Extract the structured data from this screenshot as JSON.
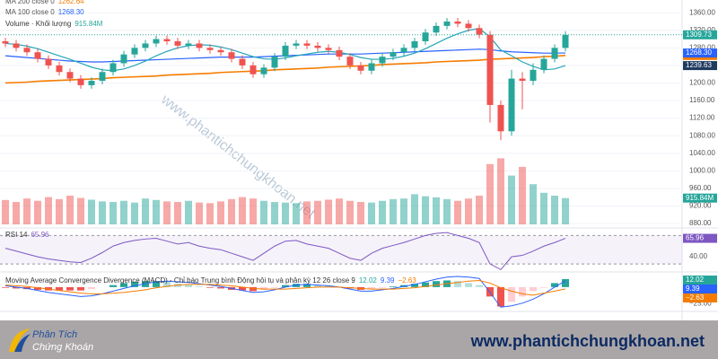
{
  "chart_data": {
    "type": "candlestick",
    "ylim": [
      874,
      1389
    ],
    "yticks": [
      {
        "value": 880,
        "label": "880.00"
      },
      {
        "value": 920,
        "label": "920.00"
      },
      {
        "value": 960,
        "label": "960.00"
      },
      {
        "value": 1000,
        "label": "1000.00"
      },
      {
        "value": 1040,
        "label": "1040.00"
      },
      {
        "value": 1080,
        "label": "1080.00"
      },
      {
        "value": 1120,
        "label": "1120.00"
      },
      {
        "value": 1160,
        "label": "1160.00"
      },
      {
        "value": 1200,
        "label": "1200.00"
      },
      {
        "value": 1240,
        "label": "1240.00"
      },
      {
        "value": 1280,
        "label": "1280.00"
      },
      {
        "value": 1320,
        "label": "1320.00"
      },
      {
        "value": 1360,
        "label": "1360.00"
      }
    ],
    "grid": true,
    "up_color": "#26a69a",
    "down_color": "#ef5350",
    "open": [
      1295,
      1290,
      1280,
      1270,
      1255,
      1240,
      1225,
      1210,
      1195,
      1205,
      1225,
      1245,
      1265,
      1280,
      1290,
      1300,
      1295,
      1285,
      1290,
      1280,
      1275,
      1270,
      1255,
      1240,
      1220,
      1235,
      1260,
      1285,
      1290,
      1285,
      1280,
      1275,
      1260,
      1240,
      1228,
      1245,
      1260,
      1270,
      1280,
      1295,
      1315,
      1330,
      1340,
      1335,
      1325,
      1310,
      1150,
      1090,
      1210,
      1205,
      1230,
      1255,
      1280
    ],
    "high": [
      1303,
      1298,
      1288,
      1278,
      1263,
      1248,
      1233,
      1218,
      1213,
      1233,
      1253,
      1273,
      1288,
      1298,
      1308,
      1308,
      1303,
      1298,
      1298,
      1288,
      1283,
      1278,
      1263,
      1248,
      1243,
      1268,
      1293,
      1298,
      1298,
      1293,
      1288,
      1283,
      1268,
      1248,
      1253,
      1268,
      1278,
      1288,
      1303,
      1323,
      1338,
      1348,
      1348,
      1343,
      1333,
      1318,
      1160,
      1230,
      1225,
      1245,
      1263,
      1288,
      1318
    ],
    "low": [
      1282,
      1272,
      1262,
      1247,
      1232,
      1217,
      1202,
      1187,
      1187,
      1197,
      1217,
      1237,
      1257,
      1272,
      1282,
      1287,
      1277,
      1277,
      1272,
      1267,
      1262,
      1247,
      1232,
      1212,
      1212,
      1227,
      1252,
      1277,
      1277,
      1272,
      1267,
      1252,
      1232,
      1220,
      1220,
      1237,
      1252,
      1262,
      1272,
      1287,
      1307,
      1322,
      1327,
      1317,
      1302,
      1110,
      1070,
      1080,
      1140,
      1195,
      1222,
      1247,
      1272
    ],
    "close": [
      1290,
      1280,
      1270,
      1255,
      1240,
      1225,
      1210,
      1195,
      1205,
      1225,
      1245,
      1265,
      1280,
      1290,
      1300,
      1295,
      1285,
      1290,
      1280,
      1275,
      1270,
      1255,
      1240,
      1220,
      1235,
      1260,
      1285,
      1290,
      1285,
      1280,
      1275,
      1260,
      1240,
      1228,
      1245,
      1260,
      1270,
      1280,
      1295,
      1315,
      1330,
      1340,
      1335,
      1325,
      1310,
      1150,
      1090,
      1210,
      1205,
      1230,
      1255,
      1280,
      1309.73
    ],
    "series": [
      {
        "name": "MA 200 close 0",
        "color": "#f57c00",
        "value_label": "1262.64",
        "values": [
          1200,
          1201,
          1202,
          1204,
          1205,
          1206,
          1207,
          1208,
          1209,
          1210,
          1212,
          1213,
          1214,
          1215,
          1216,
          1218,
          1219,
          1220,
          1221,
          1222,
          1224,
          1225,
          1226,
          1227,
          1228,
          1230,
          1231,
          1232,
          1233,
          1234,
          1236,
          1237,
          1238,
          1239,
          1240,
          1242,
          1243,
          1244,
          1245,
          1246,
          1248,
          1249,
          1250,
          1251,
          1252,
          1254,
          1255,
          1256,
          1257,
          1258,
          1260,
          1261,
          1262.64
        ]
      },
      {
        "name": "MA 100 close 0",
        "color": "#2962ff",
        "value_label": "1268.30",
        "values": [
          1262,
          1260,
          1258,
          1256,
          1254,
          1252,
          1250,
          1249,
          1248,
          1248,
          1249,
          1250,
          1251,
          1252,
          1253,
          1254,
          1255,
          1256,
          1257,
          1258,
          1259,
          1259,
          1259,
          1259,
          1260,
          1261,
          1262,
          1263,
          1264,
          1265,
          1266,
          1266,
          1266,
          1266,
          1267,
          1268,
          1269,
          1270,
          1271,
          1272,
          1273,
          1274,
          1275,
          1276,
          1277,
          1276,
          1273,
          1271,
          1270,
          1269,
          1268,
          1268,
          1268.3
        ]
      }
    ],
    "ma_short": {
      "color": "#26a6b8",
      "label_color": "#1e3a5f",
      "value_label": "1239.63",
      "values": [
        1290,
        1288,
        1284,
        1278,
        1270,
        1262,
        1254,
        1245,
        1236,
        1230,
        1228,
        1232,
        1240,
        1250,
        1262,
        1272,
        1280,
        1285,
        1287,
        1286,
        1282,
        1276,
        1268,
        1260,
        1255,
        1254,
        1257,
        1262,
        1266,
        1270,
        1272,
        1270,
        1265,
        1258,
        1254,
        1254,
        1256,
        1261,
        1268,
        1278,
        1290,
        1302,
        1312,
        1320,
        1324,
        1305,
        1275,
        1262,
        1248,
        1238,
        1230,
        1232,
        1239.63
      ]
    },
    "volume": {
      "name": "Volume · Khối lượng",
      "value_label": "915.84M",
      "ylim": [
        0,
        2500
      ],
      "values": [
        850,
        780,
        900,
        820,
        950,
        880,
        1000,
        920,
        860,
        800,
        780,
        820,
        760,
        900,
        850,
        800,
        780,
        820,
        760,
        740,
        800,
        880,
        950,
        900,
        820,
        780,
        760,
        740,
        800,
        820,
        860,
        900,
        820,
        780,
        760,
        820,
        880,
        900,
        1050,
        980,
        940,
        880,
        820,
        900,
        1000,
        2100,
        2300,
        1700,
        2000,
        1400,
        1100,
        1000,
        915.84
      ]
    },
    "rsi": {
      "name": "RSI 14",
      "color": "#7e57c2",
      "ylim": [
        20,
        78
      ],
      "levels": [
        30,
        70
      ],
      "yticks": [
        {
          "value": 40,
          "label": "40.00"
        }
      ],
      "values": [
        52,
        48,
        44,
        40,
        37,
        35,
        33,
        32,
        38,
        46,
        55,
        60,
        63,
        65,
        66,
        62,
        58,
        60,
        55,
        52,
        50,
        45,
        40,
        35,
        45,
        55,
        62,
        63,
        58,
        55,
        52,
        45,
        38,
        35,
        45,
        52,
        56,
        60,
        65,
        70,
        73,
        74,
        70,
        66,
        60,
        30,
        22,
        40,
        42,
        48,
        55,
        60,
        65.96
      ]
    },
    "macd": {
      "name": "Moving Average Convergence Divergence (MACD) - Chỉ báo Trung bình Động hội tụ và phân kỳ 12 26 close 9",
      "ylim": [
        -35,
        20
      ],
      "yticks": [
        {
          "value": -25,
          "label": "−25.00"
        }
      ],
      "macd_color": "#2962ff",
      "signal_color": "#f57c00",
      "signal_label": "−2.63",
      "histogram": [
        -1,
        -2,
        -3,
        -4,
        -5,
        -5,
        -5,
        -5,
        -3,
        0,
        3,
        6,
        8,
        9,
        9,
        8,
        5,
        3,
        1,
        -1,
        -2,
        -4,
        -5,
        -6,
        -4,
        -1,
        3,
        5,
        5,
        3,
        2,
        0,
        -2,
        -4,
        -3,
        -1,
        1,
        3,
        5,
        7,
        9,
        10,
        9,
        6,
        3,
        -14,
        -29,
        -22,
        -14,
        -6,
        -1,
        6,
        12.02
      ],
      "macd": [
        2,
        0,
        -2,
        -5,
        -8,
        -10,
        -12,
        -14,
        -13,
        -10,
        -6,
        -2,
        2,
        5,
        8,
        9,
        8,
        7,
        5,
        3,
        1,
        -2,
        -5,
        -8,
        -7,
        -4,
        0,
        3,
        4,
        3,
        2,
        0,
        -3,
        -6,
        -6,
        -4,
        -2,
        1,
        4,
        8,
        12,
        15,
        16,
        15,
        13,
        -8,
        -30,
        -28,
        -24,
        -18,
        -10,
        0,
        9.39
      ],
      "signal": [
        3,
        2,
        1,
        -1,
        -3,
        -5,
        -7,
        -9,
        -10,
        -10,
        -9,
        -8,
        -6,
        -4,
        -1,
        1,
        3,
        4,
        4,
        4,
        3,
        2,
        0,
        -2,
        -3,
        -3,
        -3,
        -2,
        -1,
        0,
        0,
        0,
        -1,
        -2,
        -3,
        -3,
        -3,
        -2,
        -1,
        1,
        3,
        5,
        7,
        9,
        10,
        6,
        -1,
        -6,
        -10,
        -12,
        -9,
        -6,
        -2.63
      ]
    }
  },
  "watermark": "www.phantichchungkhoan.net",
  "footer": {
    "logo_line1": "Phân Tích",
    "logo_line2": "Chứng Khoán",
    "url": "www.phantichchungkhoan.net"
  }
}
